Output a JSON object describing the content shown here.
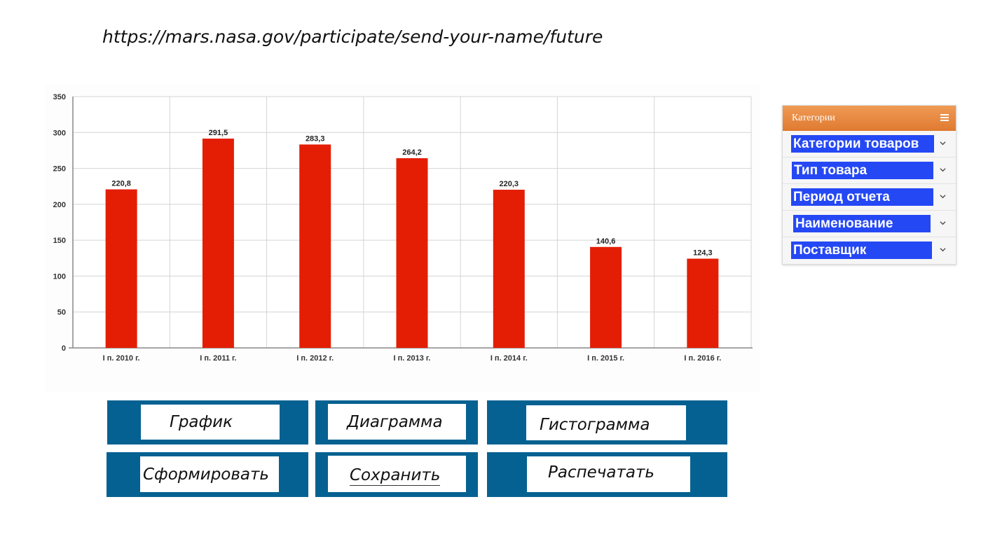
{
  "address": {
    "url": "https://mars.nasa.gov/participate/send-your-name/future"
  },
  "chart_data": {
    "type": "bar",
    "categories": [
      "I п. 2010 г.",
      "I п. 2011 г.",
      "I п. 2012 г.",
      "I п. 2013 г.",
      "I п. 2014 г.",
      "I п. 2015 г.",
      "I п. 2016 г."
    ],
    "values": [
      220.8,
      291.5,
      283.3,
      264.2,
      220.3,
      140.6,
      124.3
    ],
    "data_labels": [
      "220,8",
      "291,5",
      "283,3",
      "264,2",
      "220,3",
      "140,6",
      "124,3"
    ],
    "title": "",
    "xlabel": "",
    "ylabel": "",
    "ylim": [
      0,
      350
    ],
    "yticks": [
      0,
      50,
      100,
      150,
      200,
      250,
      300,
      350
    ],
    "grid": true,
    "bar_color": "#e31e05"
  },
  "sidebar": {
    "title": "Категории",
    "header_color": "#e8843c",
    "items": [
      {
        "label": "Категории товаров"
      },
      {
        "label": "Тип товара"
      },
      {
        "label": "Период отчета"
      },
      {
        "label": "Наименование"
      },
      {
        "label": "Поставщик"
      }
    ]
  },
  "buttons": {
    "chart": "График",
    "diagram": "Диаграмма",
    "histogram": "Гистограмма",
    "generate": "Сформировать",
    "save": "Сохранить",
    "print": "Распечатать",
    "frame_color": "#056191"
  }
}
